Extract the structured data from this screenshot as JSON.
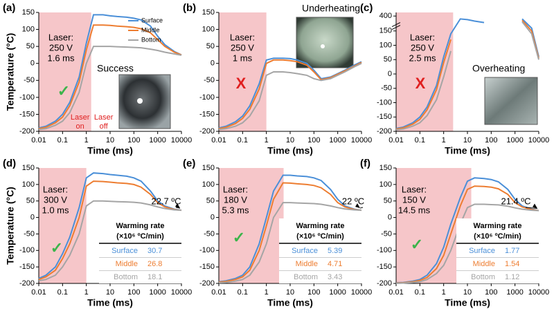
{
  "chart_data": [
    {
      "type": "line",
      "label": "(a)",
      "laser_text": [
        "Laser:",
        "250 V",
        "1.6 ms"
      ],
      "verdict": "✓",
      "verdict_color": "#3cb44b",
      "outcome": "Success",
      "laser_on": [
        "Laser",
        "on"
      ],
      "laser_off": [
        "Laser",
        "off"
      ],
      "xlabel": "Time (ms)",
      "ylabel": "Temperature (°C)",
      "log_x": true,
      "legend": "upper right",
      "x": [
        0.01,
        0.02,
        0.05,
        0.1,
        0.2,
        0.5,
        1,
        2,
        5,
        10,
        20,
        50,
        100,
        200,
        500,
        1000,
        2000,
        5000,
        10000
      ],
      "series": [
        {
          "name": "Surface",
          "color": "#4a8fd8",
          "values": [
            -190,
            -185,
            -170,
            -150,
            -115,
            -40,
            60,
            143,
            143,
            140,
            138,
            136,
            133,
            128,
            110,
            80,
            55,
            35,
            25
          ]
        },
        {
          "name": "Middle",
          "color": "#ed7d31",
          "values": [
            -192,
            -188,
            -175,
            -158,
            -125,
            -55,
            40,
            113,
            113,
            112,
            110,
            108,
            106,
            102,
            90,
            70,
            50,
            33,
            25
          ]
        },
        {
          "name": "Bottom",
          "color": "#a5a5a5",
          "values": [
            -195,
            -192,
            -182,
            -170,
            -145,
            -85,
            0,
            50,
            50,
            50,
            49,
            48,
            47,
            46,
            42,
            38,
            33,
            28,
            24
          ]
        }
      ],
      "shade": [
        0.01,
        1.6
      ],
      "shade_color": "#f6c6c9",
      "xlim": [
        0.01,
        10000
      ],
      "xticks": [
        0.01,
        0.1,
        1,
        10,
        100,
        1000,
        10000
      ],
      "ylim": [
        -200,
        150
      ],
      "yticks": [
        -200,
        -150,
        -100,
        -50,
        0,
        50,
        100,
        150
      ]
    },
    {
      "type": "line",
      "label": "(b)",
      "laser_text": [
        "Laser:",
        "250 V",
        "1 ms"
      ],
      "verdict": "X",
      "verdict_color": "#e02020",
      "outcome": "Underheating",
      "xlabel": "Time (ms)",
      "log_x": true,
      "x": [
        0.01,
        0.02,
        0.05,
        0.1,
        0.2,
        0.5,
        1,
        2,
        5,
        10,
        20,
        50,
        100,
        200,
        500,
        1000,
        2000,
        5000,
        10000
      ],
      "series": [
        {
          "name": "Surface",
          "color": "#4a8fd8",
          "values": [
            -190,
            -185,
            -172,
            -155,
            -125,
            -60,
            10,
            15,
            15,
            14,
            10,
            0,
            -20,
            -45,
            -40,
            -30,
            -20,
            -5,
            5
          ]
        },
        {
          "name": "Middle",
          "color": "#ed7d31",
          "values": [
            -192,
            -188,
            -177,
            -162,
            -135,
            -75,
            0,
            10,
            10,
            8,
            5,
            -5,
            -25,
            -48,
            -42,
            -32,
            -22,
            -8,
            3
          ]
        },
        {
          "name": "Bottom",
          "color": "#a5a5a5",
          "values": [
            -195,
            -192,
            -185,
            -175,
            -155,
            -110,
            -35,
            -25,
            -25,
            -27,
            -30,
            -35,
            -45,
            -50,
            -45,
            -35,
            -25,
            -10,
            0
          ]
        }
      ],
      "shade": [
        0.01,
        1
      ],
      "shade_color": "#f6c6c9",
      "xlim": [
        0.01,
        10000
      ],
      "xticks": [
        0.01,
        0.1,
        1,
        10,
        100,
        1000,
        10000
      ],
      "ylim": [
        -200,
        150
      ],
      "yticks": [
        -200,
        -150,
        -100,
        -50,
        0,
        50,
        100,
        150
      ]
    },
    {
      "type": "line",
      "label": "(c)",
      "laser_text": [
        "Laser:",
        "250 V",
        "2.5 ms"
      ],
      "verdict": "X",
      "verdict_color": "#e02020",
      "outcome": "Overheating",
      "xlabel": "Time (ms)",
      "log_x": true,
      "x": [
        0.01,
        0.02,
        0.05,
        0.1,
        0.2,
        0.5,
        1,
        2,
        5,
        10,
        20,
        50,
        100,
        200,
        500,
        1000,
        2000,
        5000,
        10000
      ],
      "series": [
        {
          "name": "Surface",
          "color": "#4a8fd8",
          "values": [
            -190,
            -185,
            -170,
            -150,
            -115,
            -40,
            60,
            140,
            392,
            390,
            386,
            382,
            null,
            null,
            null,
            null,
            392,
            160,
            60
          ]
        },
        {
          "name": "Middle",
          "color": "#ed7d31",
          "values": [
            -192,
            -188,
            -175,
            -158,
            -125,
            -55,
            40,
            120,
            null,
            null,
            null,
            null,
            null,
            null,
            null,
            null,
            388,
            150,
            55
          ]
        },
        {
          "name": "Bottom",
          "color": "#a5a5a5",
          "values": [
            -195,
            -192,
            -182,
            -170,
            -145,
            -90,
            -10,
            80,
            null,
            null,
            null,
            null,
            null,
            null,
            null,
            null,
            384,
            140,
            50
          ]
        }
      ],
      "shade": [
        0.01,
        2.5
      ],
      "shade_color": "#f6c6c9",
      "xlim": [
        0.01,
        10000
      ],
      "xticks": [
        0.01,
        0.1,
        1,
        10,
        100,
        1000,
        10000
      ],
      "ylim": [
        -200,
        410
      ],
      "y_break": [
        160,
        380
      ],
      "yticks": [
        -200,
        -150,
        -100,
        -50,
        0,
        50,
        100,
        150,
        400
      ]
    },
    {
      "type": "line",
      "label": "(d)",
      "laser_text": [
        "Laser:",
        "300 V",
        "1.0 ms"
      ],
      "verdict": "✓",
      "verdict_color": "#3cb44b",
      "final_temp": "22.7 ºC",
      "xlabel": "Time (ms)",
      "ylabel": "Temperature (°C)",
      "log_x": true,
      "x": [
        0.01,
        0.02,
        0.05,
        0.1,
        0.2,
        0.5,
        1,
        2,
        5,
        10,
        20,
        50,
        100,
        200,
        500,
        1000,
        2000,
        5000,
        10000
      ],
      "series": [
        {
          "name": "Surface",
          "color": "#4a8fd8",
          "values": [
            -185,
            -175,
            -150,
            -110,
            -60,
            30,
            120,
            135,
            133,
            130,
            128,
            125,
            120,
            110,
            80,
            50,
            35,
            25,
            22
          ]
        },
        {
          "name": "Middle",
          "color": "#ed7d31",
          "values": [
            -188,
            -180,
            -160,
            -125,
            -80,
            0,
            95,
            110,
            109,
            107,
            105,
            103,
            100,
            92,
            70,
            45,
            32,
            24,
            22
          ]
        },
        {
          "name": "Bottom",
          "color": "#a5a5a5",
          "values": [
            -192,
            -188,
            -175,
            -150,
            -115,
            -50,
            35,
            50,
            50,
            49,
            48,
            47,
            46,
            44,
            38,
            32,
            27,
            23,
            22
          ]
        }
      ],
      "shade": [
        0.01,
        1.0
      ],
      "shade_color": "#f6c6c9",
      "warming_rate": {
        "title": "Warming rate",
        "unit": "(×10⁶ ºC/min)",
        "rows": [
          {
            "name": "Surface",
            "value": 30.7
          },
          {
            "name": "Middle",
            "value": 26.8
          },
          {
            "name": "Bottom",
            "value": 18.1
          }
        ]
      },
      "xlim": [
        0.01,
        10000
      ],
      "xticks": [
        0.01,
        0.1,
        1,
        10,
        100,
        1000,
        10000
      ],
      "ylim": [
        -200,
        150
      ],
      "yticks": [
        -200,
        -150,
        -100,
        -50,
        0,
        50,
        100,
        150
      ]
    },
    {
      "type": "line",
      "label": "(e)",
      "laser_text": [
        "Laser:",
        "180 V",
        "5.3 ms"
      ],
      "verdict": "✓",
      "verdict_color": "#3cb44b",
      "final_temp": "22 ºC",
      "xlabel": "Time (ms)",
      "log_x": true,
      "x": [
        0.01,
        0.02,
        0.05,
        0.1,
        0.2,
        0.5,
        1,
        2,
        5,
        10,
        20,
        50,
        100,
        200,
        500,
        1000,
        2000,
        5000,
        10000
      ],
      "series": [
        {
          "name": "Surface",
          "color": "#4a8fd8",
          "values": [
            -195,
            -192,
            -185,
            -175,
            -150,
            -80,
            0,
            80,
            128,
            128,
            126,
            124,
            120,
            112,
            85,
            55,
            35,
            25,
            22
          ]
        },
        {
          "name": "Middle",
          "color": "#ed7d31",
          "values": [
            -196,
            -194,
            -188,
            -180,
            -160,
            -100,
            -25,
            55,
            105,
            104,
            102,
            100,
            97,
            90,
            70,
            45,
            32,
            24,
            22
          ]
        },
        {
          "name": "Bottom",
          "color": "#a5a5a5",
          "values": [
            -198,
            -197,
            -193,
            -188,
            -175,
            -135,
            -80,
            0,
            45,
            45,
            44,
            43,
            42,
            40,
            35,
            30,
            26,
            23,
            22
          ]
        }
      ],
      "shade": [
        0.01,
        5.3
      ],
      "shade_color": "#f6c6c9",
      "warming_rate": {
        "title": "Warming rate",
        "unit": "(×10⁶ ºC/min)",
        "rows": [
          {
            "name": "Surface",
            "value": 5.39
          },
          {
            "name": "Middle",
            "value": 4.71
          },
          {
            "name": "Bottom",
            "value": 3.43
          }
        ]
      },
      "xlim": [
        0.01,
        10000
      ],
      "xticks": [
        0.01,
        0.1,
        1,
        10,
        100,
        1000,
        10000
      ],
      "ylim": [
        -200,
        150
      ],
      "yticks": [
        -200,
        -150,
        -100,
        -50,
        0,
        50,
        100,
        150
      ]
    },
    {
      "type": "line",
      "label": "(f)",
      "laser_text": [
        "Laser:",
        "150 V",
        "14.5 ms"
      ],
      "verdict": "✓",
      "verdict_color": "#3cb44b",
      "final_temp": "21.4 ºC",
      "xlabel": "Time (ms)",
      "log_x": true,
      "x": [
        0.01,
        0.02,
        0.05,
        0.1,
        0.2,
        0.5,
        1,
        2,
        5,
        10,
        20,
        50,
        100,
        200,
        500,
        1000,
        2000,
        5000,
        10000
      ],
      "series": [
        {
          "name": "Surface",
          "color": "#4a8fd8",
          "values": [
            -198,
            -197,
            -193,
            -188,
            -175,
            -140,
            -90,
            -20,
            60,
            110,
            120,
            118,
            115,
            108,
            85,
            55,
            35,
            25,
            21
          ]
        },
        {
          "name": "Middle",
          "color": "#ed7d31",
          "values": [
            -199,
            -198,
            -195,
            -191,
            -182,
            -155,
            -115,
            -50,
            35,
            85,
            95,
            94,
            92,
            87,
            70,
            45,
            32,
            24,
            21
          ]
        },
        {
          "name": "Bottom",
          "color": "#a5a5a5",
          "values": [
            -200,
            -199,
            -197,
            -195,
            -188,
            -170,
            -145,
            -100,
            -20,
            30,
            40,
            40,
            39,
            38,
            34,
            29,
            25,
            22,
            21
          ]
        }
      ],
      "shade": [
        0.01,
        14.5
      ],
      "shade_color": "#f6c6c9",
      "warming_rate": {
        "title": "Warming rate",
        "unit": "(×10⁶ ºC/min)",
        "rows": [
          {
            "name": "Surface",
            "value": 1.77
          },
          {
            "name": "Middle",
            "value": 1.54
          },
          {
            "name": "Bottom",
            "value": 1.12
          }
        ]
      },
      "xlim": [
        0.01,
        10000
      ],
      "xticks": [
        0.01,
        0.1,
        1,
        10,
        100,
        1000,
        10000
      ],
      "ylim": [
        -200,
        150
      ],
      "yticks": [
        -200,
        -150,
        -100,
        -50,
        0,
        50,
        100,
        150
      ]
    }
  ]
}
